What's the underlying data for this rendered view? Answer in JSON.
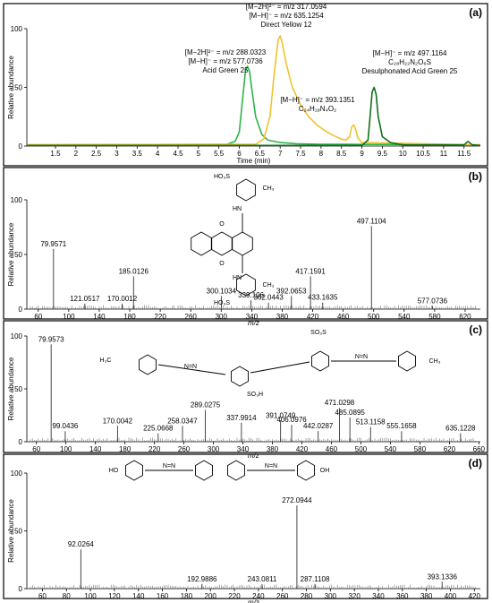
{
  "chart_data": [
    {
      "panel": "(a)",
      "type": "line",
      "xlabel": "Time (min)",
      "ylabel": "Relative abundance",
      "xlim": [
        0.8,
        11.9
      ],
      "ylim": [
        0,
        100
      ],
      "xticks": [
        1.5,
        2,
        2.5,
        3,
        3.5,
        4,
        4.5,
        5,
        5.5,
        6,
        6.5,
        7,
        7.5,
        8,
        8.5,
        9,
        9.5,
        10,
        10.5,
        11,
        11.5
      ],
      "yticks": [
        0,
        50,
        100
      ],
      "colors": {
        "acid_green_25": "#2db34a",
        "direct_yellow_12": "#f2c12e",
        "desulph": "#0f6e1a"
      },
      "series": [
        {
          "key": "acid_green_25",
          "color": "#2db34a",
          "x": [
            0.8,
            5.7,
            5.9,
            6.0,
            6.08,
            6.15,
            6.2,
            6.25,
            6.3,
            6.4,
            6.55,
            6.7,
            7.0,
            7.4,
            8.0,
            11.9
          ],
          "y": [
            1,
            1.5,
            4,
            12,
            40,
            64,
            68,
            64,
            50,
            25,
            10,
            5,
            3,
            2,
            1.5,
            1
          ]
        },
        {
          "key": "direct_yellow_12",
          "color": "#f2c12e",
          "x": [
            0.8,
            6.4,
            6.6,
            6.75,
            6.85,
            6.95,
            7.0,
            7.05,
            7.15,
            7.3,
            7.5,
            7.7,
            7.9,
            8.1,
            8.3,
            8.5,
            8.6,
            8.7,
            8.75,
            8.8,
            8.85,
            8.9,
            9.0,
            11.9
          ],
          "y": [
            1,
            1.5,
            6,
            25,
            60,
            90,
            94,
            88,
            70,
            50,
            35,
            25,
            18,
            13,
            9,
            6,
            5,
            8,
            16,
            18,
            14,
            7,
            3,
            1
          ]
        },
        {
          "key": "desulph",
          "color": "#0f6e1a",
          "x": [
            0.8,
            9.0,
            9.15,
            9.2,
            9.25,
            9.3,
            9.35,
            9.4,
            9.5,
            9.7,
            10,
            11.5,
            11.6,
            11.7,
            11.9
          ],
          "y": [
            0.5,
            0.5,
            5,
            25,
            46,
            50,
            44,
            25,
            8,
            3,
            1,
            1,
            4,
            1,
            0.5
          ]
        }
      ],
      "annotations": [
        {
          "lines": [
            "[M−2H]²⁻ = m/z 317.0594",
            "[M−H]⁻ = m/z 635.1254",
            "Direct Yellow 12"
          ],
          "at": [
            7.0,
            119
          ]
        },
        {
          "lines": [
            "[M−2H]²⁻ = m/z 288.0323",
            "[M−H]⁻ = m/z 577.0736",
            "Acid Green 25"
          ],
          "at": [
            6.1,
            78
          ]
        },
        {
          "lines": [
            "[M−H]⁻ = m/z 497.1164",
            "C₂₈H₂₂N₂O₆S",
            "Desulphonated Acid Green 25"
          ],
          "at": [
            9.3,
            75
          ]
        },
        {
          "lines": [
            "[M−H]⁻ = m/z 393.1351",
            "C₂₄H₁₈N₄O₂"
          ],
          "at": [
            8.3,
            39
          ]
        }
      ]
    },
    {
      "panel": "(b)",
      "type": "bar",
      "xlabel": "m/z",
      "ylabel": "Relative abundance",
      "xlim": [
        45,
        640
      ],
      "ylim": [
        0,
        100
      ],
      "xticks": [
        60,
        100,
        140,
        180,
        220,
        260,
        300,
        340,
        380,
        420,
        460,
        500,
        540,
        580,
        620
      ],
      "yticks": [
        0,
        50,
        100
      ],
      "peaks": [
        {
          "mz": 79.9571,
          "y": 55,
          "label": "79.9571"
        },
        {
          "mz": 121.0517,
          "y": 5,
          "label": "121.0517"
        },
        {
          "mz": 170.0012,
          "y": 5,
          "label": "170.0012"
        },
        {
          "mz": 185.0126,
          "y": 30,
          "label": "185.0126"
        },
        {
          "mz": 300.1034,
          "y": 12,
          "label": "300.1034"
        },
        {
          "mz": 339.106,
          "y": 8,
          "label": "339.106"
        },
        {
          "mz": 362.0443,
          "y": 6,
          "label": "362.0443"
        },
        {
          "mz": 392.0653,
          "y": 12,
          "label": "392.0653"
        },
        {
          "mz": 417.1591,
          "y": 30,
          "label": "417.1591"
        },
        {
          "mz": 433.1635,
          "y": 6,
          "label": "433.1635"
        },
        {
          "mz": 497.1104,
          "y": 76,
          "label": "497.1104"
        },
        {
          "mz": 577.0736,
          "y": 3,
          "label": "577.0736"
        }
      ],
      "structure_labels": [
        "HO₃S",
        "HN",
        "HN",
        "HO₃S"
      ]
    },
    {
      "panel": "(c)",
      "type": "bar",
      "xlabel": "m/z",
      "ylabel": "Relative abundance",
      "xlim": [
        47,
        662
      ],
      "ylim": [
        0,
        100
      ],
      "xticks": [
        60,
        100,
        140,
        180,
        220,
        260,
        300,
        340,
        380,
        420,
        460,
        500,
        540,
        580,
        620,
        660
      ],
      "yticks": [
        0,
        50,
        100
      ],
      "peaks": [
        {
          "mz": 79.9573,
          "y": 92,
          "label": "79.9573"
        },
        {
          "mz": 99.0436,
          "y": 10,
          "label": "99.0436"
        },
        {
          "mz": 170.0042,
          "y": 15,
          "label": "170.0042"
        },
        {
          "mz": 225.0668,
          "y": 8,
          "label": "225.0668"
        },
        {
          "mz": 258.0347,
          "y": 15,
          "label": "258.0347"
        },
        {
          "mz": 289.0275,
          "y": 30,
          "label": "289.0275"
        },
        {
          "mz": 337.9914,
          "y": 18,
          "label": "337.9914"
        },
        {
          "mz": 391.0749,
          "y": 20,
          "label": "391.0749"
        },
        {
          "mz": 406.0976,
          "y": 16,
          "label": "406.0976"
        },
        {
          "mz": 442.0287,
          "y": 10,
          "label": "442.0287"
        },
        {
          "mz": 471.0298,
          "y": 32,
          "label": "471.0298"
        },
        {
          "mz": 485.0895,
          "y": 23,
          "label": "485.0895"
        },
        {
          "mz": 513.1158,
          "y": 14,
          "label": "513.1158"
        },
        {
          "mz": 555.1658,
          "y": 10,
          "label": "555.1658"
        },
        {
          "mz": 635.1228,
          "y": 8,
          "label": "635.1228"
        }
      ],
      "structure_labels": [
        "H₃C",
        "SO₃S",
        "SO₃H"
      ]
    },
    {
      "panel": "(d)",
      "type": "bar",
      "xlabel": "m/z",
      "ylabel": "Relative abundance",
      "xlim": [
        47,
        425
      ],
      "ylim": [
        0,
        100
      ],
      "xticks": [
        60,
        80,
        100,
        120,
        140,
        160,
        180,
        200,
        220,
        240,
        260,
        280,
        300,
        320,
        340,
        360,
        380,
        400,
        420
      ],
      "yticks": [
        0,
        50,
        100
      ],
      "peaks": [
        {
          "mz": 92.0264,
          "y": 34,
          "label": "92.0264"
        },
        {
          "mz": 192.9886,
          "y": 4,
          "label": "192.9886"
        },
        {
          "mz": 243.0811,
          "y": 4,
          "label": "243.0811"
        },
        {
          "mz": 272.0944,
          "y": 72,
          "label": "272.0944"
        },
        {
          "mz": 287.1108,
          "y": 4,
          "label": "287.1108"
        },
        {
          "mz": 393.1336,
          "y": 6,
          "label": "393.1336"
        }
      ],
      "structure_labels": [
        "HO",
        "OH"
      ]
    }
  ]
}
